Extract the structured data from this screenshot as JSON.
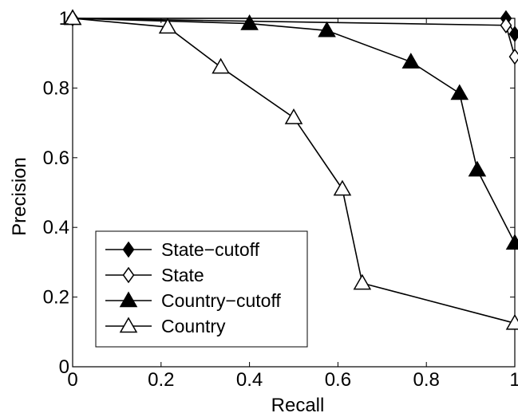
{
  "chart_data": {
    "type": "line",
    "title": "",
    "xlabel": "Recall",
    "ylabel": "Precision",
    "xlim": [
      0,
      1
    ],
    "ylim": [
      0,
      1
    ],
    "xticks": [
      0,
      0.2,
      0.4,
      0.6,
      0.8,
      1
    ],
    "xtick_labels": [
      "0",
      "0.2",
      "0.4",
      "0.6",
      "0.8",
      "1"
    ],
    "yticks": [
      0,
      0.2,
      0.4,
      0.6,
      0.8,
      1
    ],
    "ytick_labels": [
      "0",
      "0.2",
      "0.4",
      "0.6",
      "0.8",
      "1"
    ],
    "grid": false,
    "legend_position": "bottom-left",
    "series": [
      {
        "name": "State−cutoff",
        "marker": "diamond",
        "filled": true,
        "color": "#000000",
        "points": [
          [
            0,
            1.0
          ],
          [
            0.98,
            1.0
          ],
          [
            1.0,
            0.955
          ]
        ]
      },
      {
        "name": "State",
        "marker": "diamond",
        "filled": false,
        "color": "#000000",
        "points": [
          [
            0,
            1.0
          ],
          [
            0.98,
            0.98
          ],
          [
            1.0,
            0.89
          ]
        ]
      },
      {
        "name": "Country−cutoff",
        "marker": "triangle",
        "filled": true,
        "color": "#000000",
        "points": [
          [
            0,
            1.0
          ],
          [
            0.4,
            0.985
          ],
          [
            0.575,
            0.965
          ],
          [
            0.765,
            0.875
          ],
          [
            0.875,
            0.785
          ],
          [
            0.915,
            0.565
          ],
          [
            1.0,
            0.355
          ]
        ]
      },
      {
        "name": "Country",
        "marker": "triangle",
        "filled": false,
        "color": "#000000",
        "points": [
          [
            0,
            1.0
          ],
          [
            0.215,
            0.975
          ],
          [
            0.335,
            0.86
          ],
          [
            0.5,
            0.715
          ],
          [
            0.61,
            0.51
          ],
          [
            0.655,
            0.24
          ],
          [
            1.0,
            0.125
          ]
        ]
      }
    ]
  }
}
